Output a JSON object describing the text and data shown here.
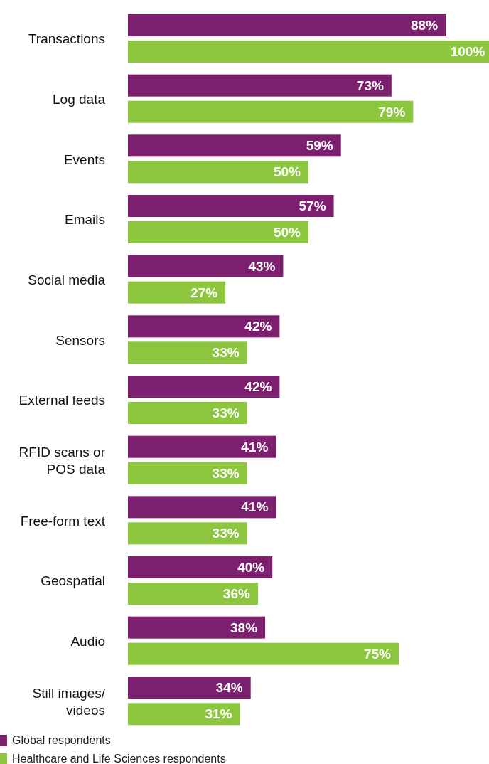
{
  "chart_data": {
    "type": "bar",
    "orientation": "horizontal",
    "categories": [
      "Transactions",
      "Log data",
      "Events",
      "Emails",
      "Social media",
      "Sensors",
      "External feeds",
      "RFID scans or POS data",
      "Free-form text",
      "Geospatial",
      "Audio",
      "Still images/ videos"
    ],
    "xlim": [
      0,
      100
    ],
    "series": [
      {
        "name": "Global respondents",
        "color": "#7c1f6e",
        "values": [
          88,
          73,
          59,
          57,
          43,
          42,
          42,
          41,
          41,
          40,
          38,
          34
        ],
        "value_labels": [
          "88%",
          "73%",
          "59%",
          "57%",
          "43%",
          "42%",
          "42%",
          "41%",
          "41%",
          "40%",
          "38%",
          "34%"
        ]
      },
      {
        "name": "Healthcare and Life Sciences respondents",
        "color": "#8cc63f",
        "values": [
          100,
          79,
          50,
          50,
          27,
          33,
          33,
          33,
          33,
          36,
          75,
          31
        ],
        "value_labels": [
          "100%",
          "79%",
          "50%",
          "50%",
          "27%",
          "33%",
          "33%",
          "33%",
          "33%",
          "36%",
          "75%",
          "31%"
        ]
      }
    ],
    "legend": "bottom left"
  }
}
